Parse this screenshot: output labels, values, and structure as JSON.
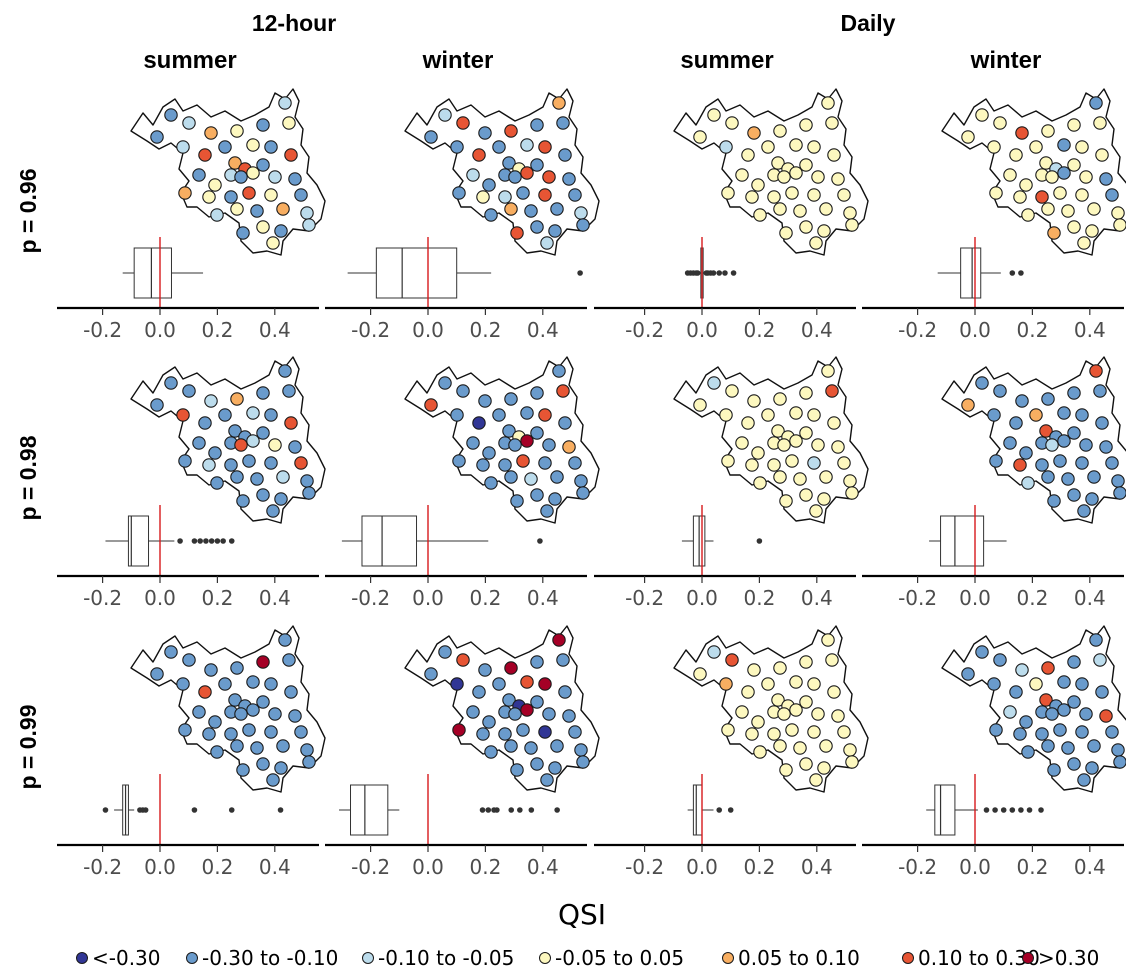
{
  "chart_data": {
    "type": "box",
    "xlabel": "QSI",
    "xlim": [
      -0.38,
      0.56
    ],
    "x_ticks": [
      "-0.2",
      "0.0",
      "0.2",
      "0.4"
    ],
    "x_tick_values": [
      -0.2,
      0.0,
      0.2,
      0.4
    ],
    "reference_line": {
      "x": 0.0,
      "color": "#d7191c"
    },
    "column_groups": [
      "12-hour",
      "Daily"
    ],
    "columns": [
      {
        "group": "12-hour",
        "season": "summer"
      },
      {
        "group": "12-hour",
        "season": "winter"
      },
      {
        "group": "Daily",
        "season": "summer"
      },
      {
        "group": "Daily",
        "season": "winter"
      }
    ],
    "rows": [
      "p = 0.96",
      "p = 0.98",
      "p = 0.99"
    ],
    "legend": {
      "position": "bottom",
      "classes": [
        {
          "label": "<-0.30",
          "color": "#313695"
        },
        {
          "label": "-0.30 to -0.10",
          "color": "#6a9bcc"
        },
        {
          "label": "-0.10 to -0.05",
          "color": "#bcdcec"
        },
        {
          "label": "-0.05 to 0.05",
          "color": "#fdf8bf"
        },
        {
          "label": "0.05 to 0.10",
          "color": "#f8ae61"
        },
        {
          "label": "0.10 to 0.30",
          "color": "#e75534"
        },
        {
          "label": ">0.30",
          "color": "#a50026"
        }
      ]
    },
    "boxplots": [
      {
        "row": 0,
        "col": 0,
        "whisker_low": -0.13,
        "q1": -0.09,
        "median": -0.03,
        "q3": 0.04,
        "whisker_high": 0.15,
        "outliers": []
      },
      {
        "row": 0,
        "col": 1,
        "whisker_low": -0.28,
        "q1": -0.18,
        "median": -0.09,
        "q3": 0.1,
        "whisker_high": 0.22,
        "outliers": [
          0.53
        ]
      },
      {
        "row": 0,
        "col": 2,
        "whisker_low": -0.01,
        "q1": -0.004,
        "median": 0.0,
        "q3": 0.004,
        "whisker_high": 0.01,
        "outliers": [
          -0.05,
          -0.04,
          -0.03,
          -0.02,
          -0.015,
          0.015,
          0.02,
          0.03,
          0.04,
          0.06,
          0.08,
          0.11
        ]
      },
      {
        "row": 0,
        "col": 3,
        "whisker_low": -0.13,
        "q1": -0.05,
        "median": -0.01,
        "q3": 0.02,
        "whisker_high": 0.09,
        "outliers": [
          0.13,
          0.16
        ]
      },
      {
        "row": 1,
        "col": 0,
        "whisker_low": -0.19,
        "q1": -0.11,
        "median": -0.1,
        "q3": -0.04,
        "whisker_high": 0.05,
        "outliers": [
          0.07,
          0.12,
          0.14,
          0.16,
          0.18,
          0.2,
          0.22,
          0.25
        ]
      },
      {
        "row": 1,
        "col": 1,
        "whisker_low": -0.3,
        "q1": -0.23,
        "median": -0.16,
        "q3": -0.04,
        "whisker_high": 0.21,
        "outliers": [
          0.39
        ]
      },
      {
        "row": 1,
        "col": 2,
        "whisker_low": -0.07,
        "q1": -0.03,
        "median": -0.01,
        "q3": 0.01,
        "whisker_high": 0.04,
        "outliers": [
          0.2
        ]
      },
      {
        "row": 1,
        "col": 3,
        "whisker_low": -0.16,
        "q1": -0.12,
        "median": -0.07,
        "q3": 0.03,
        "whisker_high": 0.11,
        "outliers": []
      },
      {
        "row": 2,
        "col": 0,
        "whisker_low": -0.16,
        "q1": -0.13,
        "median": -0.12,
        "q3": -0.11,
        "whisker_high": -0.09,
        "outliers": [
          -0.19,
          -0.07,
          -0.06,
          -0.05,
          0.12,
          0.25,
          0.42
        ]
      },
      {
        "row": 2,
        "col": 1,
        "whisker_low": -0.31,
        "q1": -0.27,
        "median": -0.22,
        "q3": -0.14,
        "whisker_high": -0.1,
        "outliers": [
          0.19,
          0.21,
          0.23,
          0.24,
          0.29,
          0.32,
          0.36,
          0.45
        ]
      },
      {
        "row": 2,
        "col": 2,
        "whisker_low": -0.05,
        "q1": -0.03,
        "median": -0.02,
        "q3": 0.0,
        "whisker_high": 0.04,
        "outliers": [
          0.06,
          0.1
        ]
      },
      {
        "row": 2,
        "col": 3,
        "whisker_low": -0.17,
        "q1": -0.14,
        "median": -0.12,
        "q3": -0.07,
        "whisker_high": 0.01,
        "outliers": [
          0.04,
          0.07,
          0.1,
          0.13,
          0.16,
          0.19,
          0.23
        ]
      }
    ],
    "station_maps": [
      {
        "row": 0,
        "col": 0,
        "classes": [
          1,
          2,
          4,
          1,
          3,
          1,
          2,
          3,
          2,
          5,
          1,
          3,
          1,
          5,
          4,
          5,
          2,
          1,
          3,
          1,
          1,
          3,
          2,
          1,
          4,
          3,
          1,
          5,
          3,
          1,
          2,
          3,
          1,
          4,
          2,
          3,
          1,
          1,
          3,
          2
        ]
      },
      {
        "row": 0,
        "col": 1,
        "classes": [
          2,
          5,
          1,
          1,
          5,
          1,
          4,
          1,
          1,
          5,
          1,
          2,
          5,
          1,
          1,
          3,
          1,
          1,
          5,
          1,
          2,
          1,
          5,
          1,
          1,
          3,
          2,
          1,
          5,
          1,
          1,
          4,
          1,
          1,
          2,
          1,
          5,
          1,
          2,
          1
        ]
      },
      {
        "row": 0,
        "col": 2,
        "classes": [
          3,
          3,
          4,
          3,
          3,
          3,
          3,
          3,
          2,
          3,
          3,
          3,
          3,
          3,
          3,
          3,
          3,
          3,
          3,
          3,
          3,
          3,
          3,
          3,
          3,
          3,
          3,
          3,
          3,
          3,
          3,
          3,
          3,
          3,
          3,
          3,
          3,
          3,
          3,
          3
        ]
      },
      {
        "row": 0,
        "col": 3,
        "classes": [
          3,
          3,
          5,
          3,
          3,
          3,
          1,
          3,
          3,
          3,
          3,
          1,
          3,
          3,
          3,
          2,
          3,
          3,
          1,
          3,
          3,
          3,
          3,
          1,
          3,
          3,
          5,
          3,
          3,
          1,
          3,
          3,
          3,
          3,
          3,
          3,
          4,
          3,
          3,
          3
        ]
      },
      {
        "row": 1,
        "col": 0,
        "classes": [
          1,
          1,
          2,
          1,
          4,
          1,
          1,
          1,
          5,
          1,
          1,
          2,
          1,
          5,
          1,
          1,
          1,
          5,
          2,
          1,
          1,
          1,
          3,
          1,
          1,
          2,
          1,
          1,
          1,
          5,
          1,
          1,
          1,
          2,
          1,
          1,
          1,
          1,
          1,
          1
        ]
      },
      {
        "row": 1,
        "col": 1,
        "classes": [
          1,
          1,
          1,
          5,
          1,
          1,
          1,
          5,
          1,
          0,
          1,
          1,
          5,
          1,
          1,
          3,
          1,
          1,
          6,
          1,
          1,
          1,
          1,
          4,
          1,
          1,
          1,
          5,
          1,
          1,
          1,
          1,
          2,
          1,
          1,
          1,
          1,
          1,
          1,
          1
        ]
      },
      {
        "row": 1,
        "col": 2,
        "classes": [
          2,
          3,
          3,
          3,
          3,
          3,
          3,
          5,
          3,
          3,
          3,
          3,
          3,
          3,
          3,
          3,
          3,
          3,
          3,
          3,
          3,
          3,
          3,
          3,
          3,
          3,
          3,
          3,
          2,
          3,
          3,
          3,
          3,
          3,
          3,
          3,
          3,
          3,
          3,
          3
        ]
      },
      {
        "row": 1,
        "col": 3,
        "classes": [
          1,
          1,
          1,
          4,
          1,
          1,
          5,
          1,
          1,
          1,
          4,
          1,
          1,
          1,
          5,
          1,
          1,
          2,
          1,
          1,
          1,
          1,
          1,
          1,
          1,
          5,
          1,
          1,
          1,
          1,
          2,
          1,
          1,
          1,
          1,
          1,
          1,
          1,
          1,
          1
        ]
      },
      {
        "row": 2,
        "col": 0,
        "classes": [
          1,
          1,
          1,
          1,
          1,
          6,
          1,
          1,
          1,
          5,
          1,
          1,
          1,
          1,
          1,
          1,
          1,
          1,
          1,
          1,
          1,
          1,
          1,
          1,
          1,
          1,
          1,
          1,
          1,
          1,
          1,
          1,
          1,
          1,
          1,
          1,
          1,
          1,
          1,
          1
        ]
      },
      {
        "row": 2,
        "col": 1,
        "classes": [
          1,
          5,
          1,
          1,
          6,
          1,
          6,
          1,
          0,
          1,
          1,
          5,
          6,
          1,
          1,
          0,
          1,
          1,
          6,
          1,
          1,
          1,
          1,
          1,
          6,
          1,
          1,
          1,
          0,
          1,
          1,
          1,
          1,
          1,
          1,
          1,
          1,
          1,
          1,
          1
        ]
      },
      {
        "row": 2,
        "col": 2,
        "classes": [
          2,
          5,
          3,
          3,
          3,
          3,
          3,
          3,
          4,
          3,
          3,
          3,
          3,
          3,
          3,
          3,
          3,
          3,
          3,
          3,
          3,
          3,
          3,
          3,
          3,
          3,
          3,
          3,
          3,
          3,
          3,
          3,
          3,
          3,
          3,
          3,
          3,
          3,
          3,
          3
        ]
      },
      {
        "row": 2,
        "col": 3,
        "classes": [
          1,
          1,
          2,
          1,
          5,
          1,
          1,
          2,
          1,
          1,
          3,
          1,
          1,
          1,
          5,
          1,
          1,
          1,
          1,
          1,
          2,
          1,
          1,
          5,
          1,
          1,
          1,
          1,
          1,
          1,
          1,
          1,
          1,
          1,
          1,
          1,
          1,
          1,
          1,
          1
        ]
      }
    ]
  }
}
